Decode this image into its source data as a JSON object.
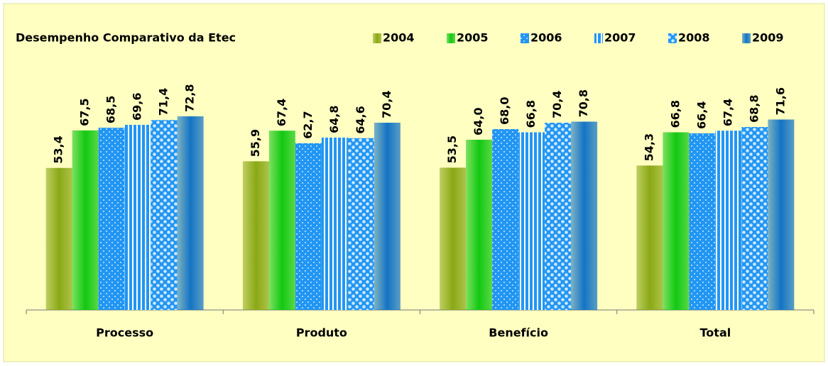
{
  "chart_data": {
    "type": "bar",
    "title": "Desempenho Comparativo da Etec",
    "categories": [
      "Processo",
      "Produto",
      "Benefício",
      "Total"
    ],
    "series": [
      {
        "name": "2004",
        "color": "#8aa815",
        "pattern": "gradient",
        "values": [
          53.4,
          55.9,
          53.5,
          54.3
        ],
        "value_labels": [
          "53,4",
          "55,9",
          "53,5",
          "54,3"
        ]
      },
      {
        "name": "2005",
        "color": "#12c812",
        "pattern": "gradient",
        "values": [
          67.5,
          67.4,
          64.0,
          66.8
        ],
        "value_labels": [
          "67,5",
          "67,4",
          "64,0",
          "66,8"
        ]
      },
      {
        "name": "2006",
        "color": "#2196f3",
        "pattern": "dots",
        "values": [
          68.5,
          62.7,
          68.0,
          66.4
        ],
        "value_labels": [
          "68,5",
          "62,7",
          "68,0",
          "66,4"
        ]
      },
      {
        "name": "2007",
        "color": "#2196f3",
        "pattern": "stripes",
        "values": [
          69.6,
          64.8,
          66.8,
          67.4
        ],
        "value_labels": [
          "69,6",
          "64,8",
          "66,8",
          "67,4"
        ]
      },
      {
        "name": "2008",
        "color": "#2196f3",
        "pattern": "checks",
        "values": [
          71.4,
          64.6,
          70.4,
          68.8
        ],
        "value_labels": [
          "71,4",
          "64,6",
          "70,4",
          "68,8"
        ]
      },
      {
        "name": "2009",
        "color": "#1374c4",
        "pattern": "gradient",
        "values": [
          72.8,
          70.4,
          70.8,
          71.6
        ],
        "value_labels": [
          "72,8",
          "70,4",
          "70,8",
          "71,6"
        ]
      }
    ],
    "ylim": [
      0,
      80
    ]
  }
}
